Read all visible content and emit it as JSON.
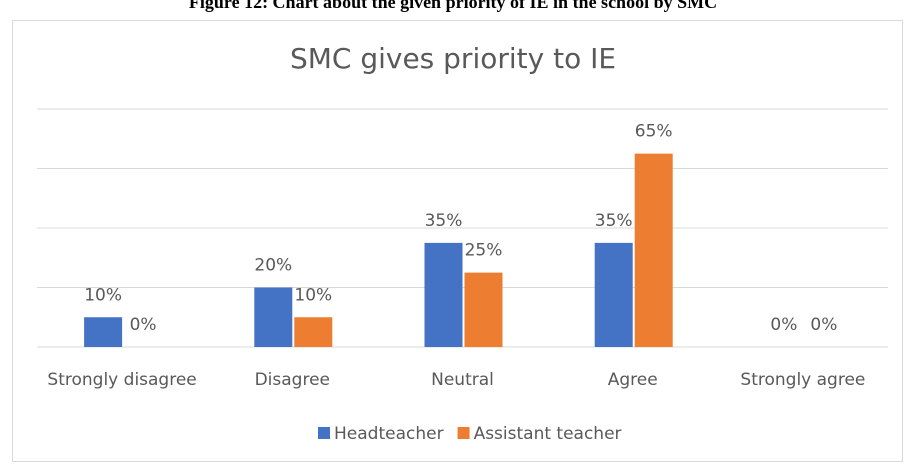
{
  "caption": "Figure 12: Chart about the given priority of IE in the school by SMC",
  "chart_data": {
    "type": "bar",
    "title": "SMC gives  priority to IE",
    "categories": [
      "Strongly disagree",
      "Disagree",
      "Neutral",
      "Agree",
      "Strongly agree"
    ],
    "series": [
      {
        "name": "Headteacher",
        "color": "#4472c4",
        "values": [
          10,
          20,
          35,
          35,
          0
        ],
        "value_labels": [
          "10%",
          "20%",
          "35%",
          "35%",
          "0%"
        ]
      },
      {
        "name": "Assistant teacher",
        "color": "#ed7d31",
        "values": [
          0,
          10,
          25,
          65,
          0
        ],
        "value_labels": [
          "0%",
          "10%",
          "25%",
          "65%",
          "0%"
        ]
      }
    ],
    "ylim": [
      0,
      80
    ],
    "yticks": [
      0,
      20,
      40,
      60,
      80
    ],
    "grid": true,
    "legend": "bottom"
  }
}
